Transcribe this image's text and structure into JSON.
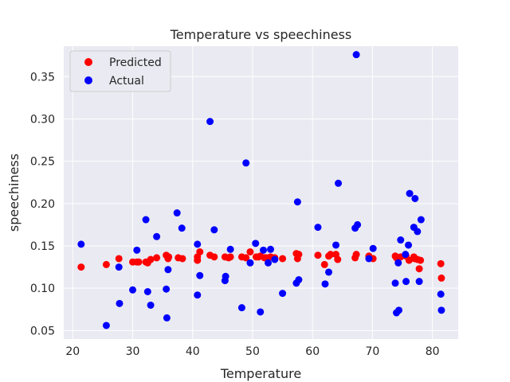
{
  "chart_data": {
    "type": "scatter",
    "title": "Temperature vs speechiness",
    "xlabel": "Temperature",
    "ylabel": "speechiness",
    "xlim": [
      18.5,
      84.3
    ],
    "ylim": [
      0.04,
      0.386
    ],
    "xticks": [
      "20",
      "30",
      "40",
      "50",
      "60",
      "70",
      "80"
    ],
    "yticks": [
      "0.05",
      "0.10",
      "0.15",
      "0.20",
      "0.25",
      "0.30",
      "0.35"
    ],
    "grid": true,
    "legend_position": "top-left",
    "series": [
      {
        "name": "Predicted",
        "color": "#ff0000",
        "points": [
          [
            21.4,
            0.125
          ],
          [
            25.6,
            0.128
          ],
          [
            27.7,
            0.135
          ],
          [
            30.0,
            0.131
          ],
          [
            30.7,
            0.131
          ],
          [
            32.2,
            0.131
          ],
          [
            32.5,
            0.13
          ],
          [
            33.0,
            0.134
          ],
          [
            34.0,
            0.136
          ],
          [
            35.6,
            0.139
          ],
          [
            35.9,
            0.135
          ],
          [
            37.6,
            0.136
          ],
          [
            38.3,
            0.135
          ],
          [
            40.8,
            0.137
          ],
          [
            40.8,
            0.133
          ],
          [
            41.2,
            0.143
          ],
          [
            42.9,
            0.139
          ],
          [
            43.6,
            0.137
          ],
          [
            45.4,
            0.137
          ],
          [
            46.3,
            0.137
          ],
          [
            48.2,
            0.137
          ],
          [
            48.9,
            0.136
          ],
          [
            49.6,
            0.143
          ],
          [
            50.6,
            0.137
          ],
          [
            51.3,
            0.138
          ],
          [
            52.3,
            0.136
          ],
          [
            53.0,
            0.137
          ],
          [
            53.7,
            0.136
          ],
          [
            55.0,
            0.135
          ],
          [
            57.3,
            0.141
          ],
          [
            57.5,
            0.135
          ],
          [
            57.7,
            0.14
          ],
          [
            60.9,
            0.139
          ],
          [
            62.7,
            0.138
          ],
          [
            63.9,
            0.14
          ],
          [
            64.2,
            0.134
          ],
          [
            67.1,
            0.136
          ],
          [
            67.3,
            0.14
          ],
          [
            69.4,
            0.138
          ],
          [
            70.1,
            0.135
          ],
          [
            73.8,
            0.138
          ],
          [
            74.3,
            0.136
          ],
          [
            74.7,
            0.137
          ],
          [
            75.6,
            0.138
          ],
          [
            76.1,
            0.133
          ],
          [
            76.9,
            0.137
          ],
          [
            77.5,
            0.134
          ],
          [
            77.8,
            0.123
          ],
          [
            78.0,
            0.133
          ],
          [
            81.4,
            0.129
          ],
          [
            81.5,
            0.112
          ],
          [
            62.0,
            0.128
          ],
          [
            31.0,
            0.131
          ],
          [
            36.0,
            0.137
          ],
          [
            46.0,
            0.136
          ],
          [
            51.0,
            0.137
          ],
          [
            52.0,
            0.136
          ],
          [
            63.0,
            0.14
          ],
          [
            74.0,
            0.136
          ],
          [
            77.0,
            0.135
          ]
        ]
      },
      {
        "name": "Actual",
        "color": "#0000ff",
        "points": [
          [
            21.4,
            0.152
          ],
          [
            25.6,
            0.056
          ],
          [
            27.7,
            0.125
          ],
          [
            27.8,
            0.082
          ],
          [
            30.0,
            0.098
          ],
          [
            30.7,
            0.145
          ],
          [
            32.2,
            0.181
          ],
          [
            32.5,
            0.096
          ],
          [
            33.0,
            0.08
          ],
          [
            34.0,
            0.161
          ],
          [
            35.6,
            0.099
          ],
          [
            35.7,
            0.065
          ],
          [
            35.9,
            0.122
          ],
          [
            37.4,
            0.189
          ],
          [
            38.2,
            0.171
          ],
          [
            40.8,
            0.152
          ],
          [
            40.8,
            0.092
          ],
          [
            41.2,
            0.115
          ],
          [
            42.9,
            0.297
          ],
          [
            43.6,
            0.169
          ],
          [
            45.4,
            0.109
          ],
          [
            45.5,
            0.114
          ],
          [
            46.3,
            0.146
          ],
          [
            48.2,
            0.077
          ],
          [
            48.9,
            0.248
          ],
          [
            49.6,
            0.13
          ],
          [
            50.5,
            0.153
          ],
          [
            51.3,
            0.072
          ],
          [
            51.8,
            0.145
          ],
          [
            52.6,
            0.13
          ],
          [
            53.0,
            0.146
          ],
          [
            53.7,
            0.134
          ],
          [
            55.0,
            0.094
          ],
          [
            57.3,
            0.106
          ],
          [
            57.5,
            0.202
          ],
          [
            57.7,
            0.11
          ],
          [
            60.9,
            0.172
          ],
          [
            62.1,
            0.105
          ],
          [
            62.7,
            0.119
          ],
          [
            63.9,
            0.151
          ],
          [
            64.3,
            0.224
          ],
          [
            67.1,
            0.171
          ],
          [
            67.3,
            0.376
          ],
          [
            67.5,
            0.175
          ],
          [
            69.4,
            0.135
          ],
          [
            70.1,
            0.147
          ],
          [
            73.8,
            0.106
          ],
          [
            74.0,
            0.071
          ],
          [
            74.3,
            0.13
          ],
          [
            74.4,
            0.074
          ],
          [
            74.7,
            0.157
          ],
          [
            75.5,
            0.14
          ],
          [
            75.6,
            0.108
          ],
          [
            76.0,
            0.151
          ],
          [
            76.2,
            0.212
          ],
          [
            76.9,
            0.172
          ],
          [
            77.1,
            0.206
          ],
          [
            77.5,
            0.167
          ],
          [
            77.8,
            0.108
          ],
          [
            78.1,
            0.181
          ],
          [
            81.4,
            0.093
          ],
          [
            81.5,
            0.074
          ]
        ]
      }
    ]
  }
}
